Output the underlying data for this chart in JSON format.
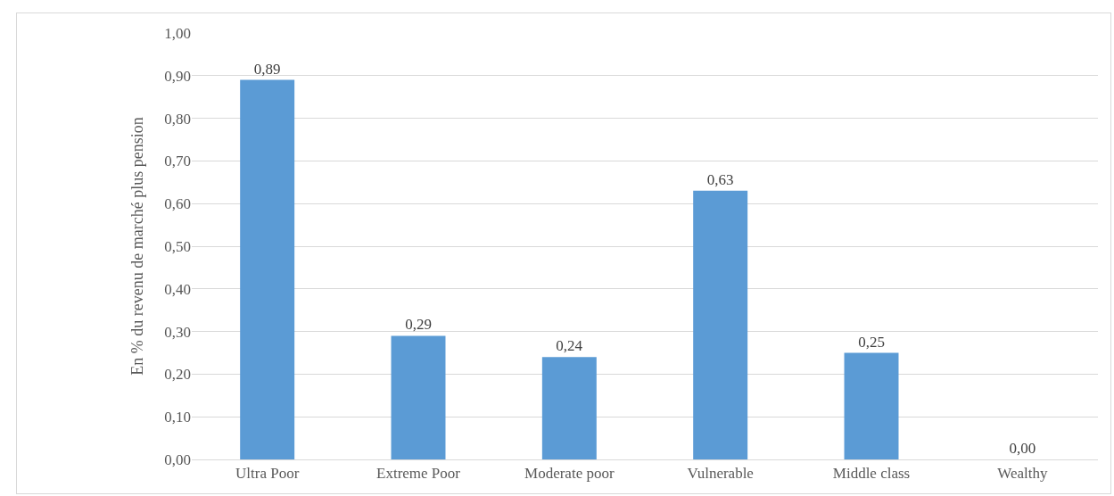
{
  "chart_data": {
    "type": "bar",
    "ylabel": "En % du revenu de marché plus pension",
    "categories": [
      "Ultra Poor",
      "Extreme Poor",
      "Moderate poor",
      "Vulnerable",
      "Middle class",
      "Wealthy"
    ],
    "values": [
      0.89,
      0.29,
      0.24,
      0.63,
      0.25,
      0.0
    ],
    "value_labels": [
      "0,89",
      "0,29",
      "0,24",
      "0,63",
      "0,25",
      "0,00"
    ],
    "color": "#5b9bd5",
    "ylim": [
      0,
      1
    ],
    "yticks": [
      {
        "value": 0,
        "label": "0,00"
      },
      {
        "value": 0.1,
        "label": "0,10"
      },
      {
        "value": 0.2,
        "label": "0,20"
      },
      {
        "value": 0.3,
        "label": "0,30"
      },
      {
        "value": 0.4,
        "label": "0,40"
      },
      {
        "value": 0.5,
        "label": "0,50"
      },
      {
        "value": 0.6,
        "label": "0,60"
      },
      {
        "value": 0.7,
        "label": "0,70"
      },
      {
        "value": 0.8,
        "label": "0,80"
      },
      {
        "value": 0.9,
        "label": "0,90"
      },
      {
        "value": 1,
        "label": "1,00"
      }
    ],
    "grid": "y",
    "legend": false
  }
}
